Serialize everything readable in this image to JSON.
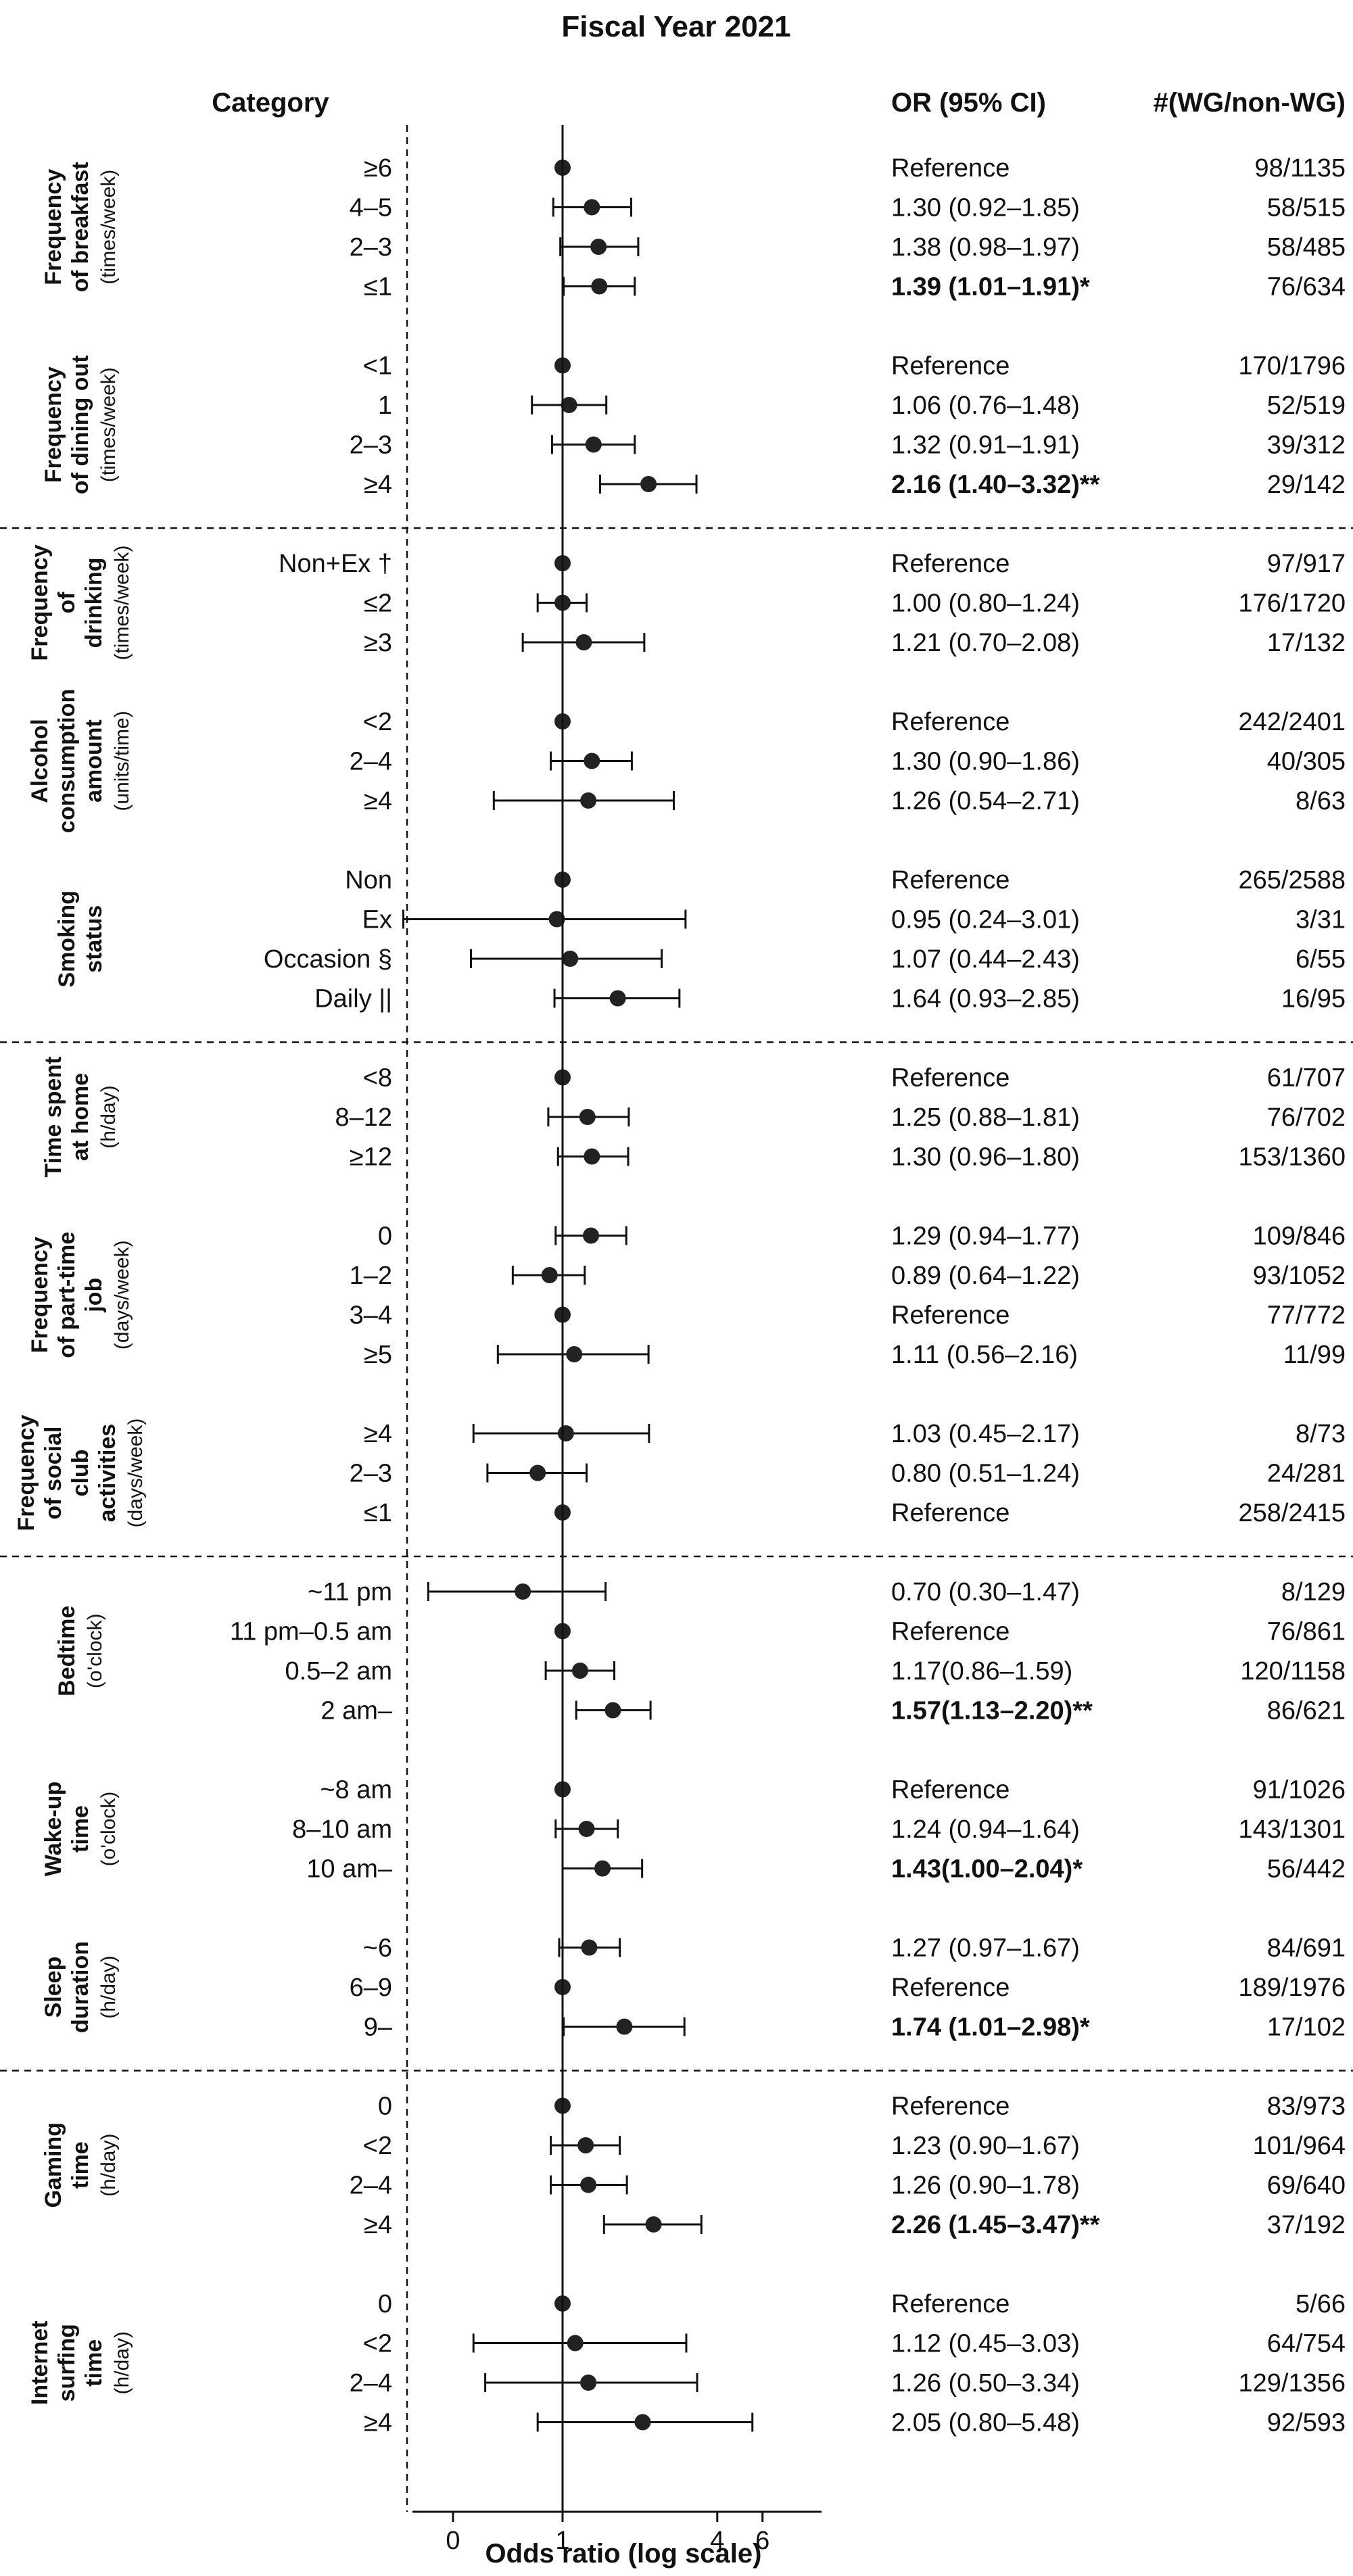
{
  "chart_data": {
    "type": "forest",
    "title": "Fiscal Year 2021",
    "column_headers": {
      "category": "Category",
      "or": "OR (95% CI)",
      "counts": "#(WG/non-WG)"
    },
    "xlabel": "Odds ratio (log scale)",
    "xticks": [
      "0",
      "1",
      "4",
      "6"
    ],
    "reference_value": 1,
    "groups": [
      {
        "label": [
          "Frequency",
          "of breakfast"
        ],
        "unit": "(times/week)",
        "rows": [
          {
            "label": "≥6",
            "or": 1.0,
            "lo": 1.0,
            "hi": 1.0,
            "text": "Reference",
            "counts": "98/1135",
            "bold": false
          },
          {
            "label": "4–5",
            "or": 1.3,
            "lo": 0.92,
            "hi": 1.85,
            "text": "1.30 (0.92–1.85)",
            "counts": "58/515",
            "bold": false
          },
          {
            "label": "2–3",
            "or": 1.38,
            "lo": 0.98,
            "hi": 1.97,
            "text": "1.38 (0.98–1.97)",
            "counts": "58/485",
            "bold": false
          },
          {
            "label": "≤1",
            "or": 1.39,
            "lo": 1.01,
            "hi": 1.91,
            "text": "1.39 (1.01–1.91)*",
            "counts": "76/634",
            "bold": true
          }
        ]
      },
      {
        "label": [
          "Frequency",
          "of dining out"
        ],
        "unit": "(times/week)",
        "rows": [
          {
            "label": "<1",
            "or": 1.0,
            "lo": 1.0,
            "hi": 1.0,
            "text": "Reference",
            "counts": "170/1796",
            "bold": false
          },
          {
            "label": "1",
            "or": 1.06,
            "lo": 0.76,
            "hi": 1.48,
            "text": "1.06 (0.76–1.48)",
            "counts": "52/519",
            "bold": false
          },
          {
            "label": "2–3",
            "or": 1.32,
            "lo": 0.91,
            "hi": 1.91,
            "text": "1.32 (0.91–1.91)",
            "counts": "39/312",
            "bold": false
          },
          {
            "label": "≥4",
            "or": 2.16,
            "lo": 1.4,
            "hi": 3.32,
            "text": "2.16 (1.40–3.32)**",
            "counts": "29/142",
            "bold": true
          }
        ]
      },
      {
        "label": [
          "Frequency",
          "of",
          "drinking"
        ],
        "unit": "(times/week)",
        "rows": [
          {
            "label": "Non+Ex †",
            "or": 1.0,
            "lo": 1.0,
            "hi": 1.0,
            "text": "Reference",
            "counts": "97/917",
            "bold": false
          },
          {
            "label": "≤2",
            "or": 1.0,
            "lo": 0.8,
            "hi": 1.24,
            "text": "1.00 (0.80–1.24)",
            "counts": "176/1720",
            "bold": false
          },
          {
            "label": "≥3",
            "or": 1.21,
            "lo": 0.7,
            "hi": 2.08,
            "text": "1.21 (0.70–2.08)",
            "counts": "17/132",
            "bold": false
          }
        ]
      },
      {
        "label": [
          "Alcohol",
          "consumption",
          "amount"
        ],
        "unit": "(units/time)",
        "rows": [
          {
            "label": "<2",
            "or": 1.0,
            "lo": 1.0,
            "hi": 1.0,
            "text": "Reference",
            "counts": "242/2401",
            "bold": false
          },
          {
            "label": "2–4",
            "or": 1.3,
            "lo": 0.9,
            "hi": 1.86,
            "text": "1.30 (0.90–1.86)",
            "counts": "40/305",
            "bold": false
          },
          {
            "label": "≥4",
            "or": 1.26,
            "lo": 0.54,
            "hi": 2.71,
            "text": "1.26 (0.54–2.71)",
            "counts": "8/63",
            "bold": false
          }
        ]
      },
      {
        "label": [
          "Smoking",
          "status"
        ],
        "unit": "",
        "rows": [
          {
            "label": "Non",
            "or": 1.0,
            "lo": 1.0,
            "hi": 1.0,
            "text": "Reference",
            "counts": "265/2588",
            "bold": false
          },
          {
            "label": "Ex",
            "or": 0.95,
            "lo": 0.24,
            "hi": 3.01,
            "text": "0.95 (0.24–3.01)",
            "counts": "3/31",
            "bold": false
          },
          {
            "label": "Occasion §",
            "or": 1.07,
            "lo": 0.44,
            "hi": 2.43,
            "text": "1.07 (0.44–2.43)",
            "counts": "6/55",
            "bold": false
          },
          {
            "label": "Daily ||",
            "or": 1.64,
            "lo": 0.93,
            "hi": 2.85,
            "text": "1.64 (0.93–2.85)",
            "counts": "16/95",
            "bold": false
          }
        ]
      },
      {
        "label": [
          "Time spent",
          "at home"
        ],
        "unit": "(h/day)",
        "rows": [
          {
            "label": "<8",
            "or": 1.0,
            "lo": 1.0,
            "hi": 1.0,
            "text": "Reference",
            "counts": "61/707",
            "bold": false
          },
          {
            "label": "8–12",
            "or": 1.25,
            "lo": 0.88,
            "hi": 1.81,
            "text": "1.25 (0.88–1.81)",
            "counts": "76/702",
            "bold": false
          },
          {
            "label": "≥12",
            "or": 1.3,
            "lo": 0.96,
            "hi": 1.8,
            "text": "1.30 (0.96–1.80)",
            "counts": "153/1360",
            "bold": false
          }
        ]
      },
      {
        "label": [
          "Frequency",
          "of part-time",
          "job"
        ],
        "unit": "(days/week)",
        "rows": [
          {
            "label": "0",
            "or": 1.29,
            "lo": 0.94,
            "hi": 1.77,
            "text": "1.29 (0.94–1.77)",
            "counts": "109/846",
            "bold": false
          },
          {
            "label": "1–2",
            "or": 0.89,
            "lo": 0.64,
            "hi": 1.22,
            "text": "0.89 (0.64–1.22)",
            "counts": "93/1052",
            "bold": false
          },
          {
            "label": "3–4",
            "or": 1.0,
            "lo": 1.0,
            "hi": 1.0,
            "text": "Reference",
            "counts": "77/772",
            "bold": false
          },
          {
            "label": "≥5",
            "or": 1.11,
            "lo": 0.56,
            "hi": 2.16,
            "text": "1.11 (0.56–2.16)",
            "counts": "11/99",
            "bold": false
          }
        ]
      },
      {
        "label": [
          "Frequency",
          "of social",
          "club",
          "activities"
        ],
        "unit": "(days/week)",
        "rows": [
          {
            "label": "≥4",
            "or": 1.03,
            "lo": 0.45,
            "hi": 2.17,
            "text": "1.03 (0.45–2.17)",
            "counts": "8/73",
            "bold": false
          },
          {
            "label": "2–3",
            "or": 0.8,
            "lo": 0.51,
            "hi": 1.24,
            "text": "0.80 (0.51–1.24)",
            "counts": "24/281",
            "bold": false
          },
          {
            "label": "≤1",
            "or": 1.0,
            "lo": 1.0,
            "hi": 1.0,
            "text": "Reference",
            "counts": "258/2415",
            "bold": false
          }
        ]
      },
      {
        "label": [
          "Bedtime"
        ],
        "unit": "(o'clock)",
        "rows": [
          {
            "label": "~11 pm",
            "or": 0.7,
            "lo": 0.3,
            "hi": 1.47,
            "text": "0.70 (0.30–1.47)",
            "counts": "8/129",
            "bold": false
          },
          {
            "label": "11 pm–0.5 am",
            "or": 1.0,
            "lo": 1.0,
            "hi": 1.0,
            "text": "Reference",
            "counts": "76/861",
            "bold": false
          },
          {
            "label": "0.5–2 am",
            "or": 1.17,
            "lo": 0.86,
            "hi": 1.59,
            "text": "1.17(0.86–1.59)",
            "counts": "120/1158",
            "bold": false
          },
          {
            "label": "2 am–",
            "or": 1.57,
            "lo": 1.13,
            "hi": 2.2,
            "text": "1.57(1.13–2.20)**",
            "counts": "86/621",
            "bold": true
          }
        ]
      },
      {
        "label": [
          "Wake-up",
          "time"
        ],
        "unit": "(o'clock)",
        "rows": [
          {
            "label": "~8 am",
            "or": 1.0,
            "lo": 1.0,
            "hi": 1.0,
            "text": "Reference",
            "counts": "91/1026",
            "bold": false
          },
          {
            "label": "8–10 am",
            "or": 1.24,
            "lo": 0.94,
            "hi": 1.64,
            "text": "1.24 (0.94–1.64)",
            "counts": "143/1301",
            "bold": false
          },
          {
            "label": "10 am–",
            "or": 1.43,
            "lo": 1.0,
            "hi": 2.04,
            "text": "1.43(1.00–2.04)*",
            "counts": "56/442",
            "bold": true
          }
        ]
      },
      {
        "label": [
          "Sleep",
          "duration"
        ],
        "unit": "(h/day)",
        "rows": [
          {
            "label": "~6",
            "or": 1.27,
            "lo": 0.97,
            "hi": 1.67,
            "text": "1.27 (0.97–1.67)",
            "counts": "84/691",
            "bold": false
          },
          {
            "label": "6–9",
            "or": 1.0,
            "lo": 1.0,
            "hi": 1.0,
            "text": "Reference",
            "counts": "189/1976",
            "bold": false
          },
          {
            "label": "9–",
            "or": 1.74,
            "lo": 1.01,
            "hi": 2.98,
            "text": "1.74 (1.01–2.98)*",
            "counts": "17/102",
            "bold": true
          }
        ]
      },
      {
        "label": [
          "Gaming",
          "time"
        ],
        "unit": "(h/day)",
        "rows": [
          {
            "label": "0",
            "or": 1.0,
            "lo": 1.0,
            "hi": 1.0,
            "text": "Reference",
            "counts": "83/973",
            "bold": false
          },
          {
            "label": "<2",
            "or": 1.23,
            "lo": 0.9,
            "hi": 1.67,
            "text": "1.23 (0.90–1.67)",
            "counts": "101/964",
            "bold": false
          },
          {
            "label": "2–4",
            "or": 1.26,
            "lo": 0.9,
            "hi": 1.78,
            "text": "1.26 (0.90–1.78)",
            "counts": "69/640",
            "bold": false
          },
          {
            "label": "≥4",
            "or": 2.26,
            "lo": 1.45,
            "hi": 3.47,
            "text": "2.26 (1.45–3.47)**",
            "counts": "37/192",
            "bold": true
          }
        ]
      },
      {
        "label": [
          "Internet",
          "surfing",
          "time"
        ],
        "unit": "(h/day)",
        "rows": [
          {
            "label": "0",
            "or": 1.0,
            "lo": 1.0,
            "hi": 1.0,
            "text": "Reference",
            "counts": "5/66",
            "bold": false
          },
          {
            "label": "<2",
            "or": 1.12,
            "lo": 0.45,
            "hi": 3.03,
            "text": "1.12 (0.45–3.03)",
            "counts": "64/754",
            "bold": false
          },
          {
            "label": "2–4",
            "or": 1.26,
            "lo": 0.5,
            "hi": 3.34,
            "text": "1.26 (0.50–3.34)",
            "counts": "129/1356",
            "bold": false
          },
          {
            "label": "≥4",
            "or": 2.05,
            "lo": 0.8,
            "hi": 5.48,
            "text": "2.05 (0.80–5.48)",
            "counts": "92/593",
            "bold": false
          }
        ]
      }
    ]
  }
}
